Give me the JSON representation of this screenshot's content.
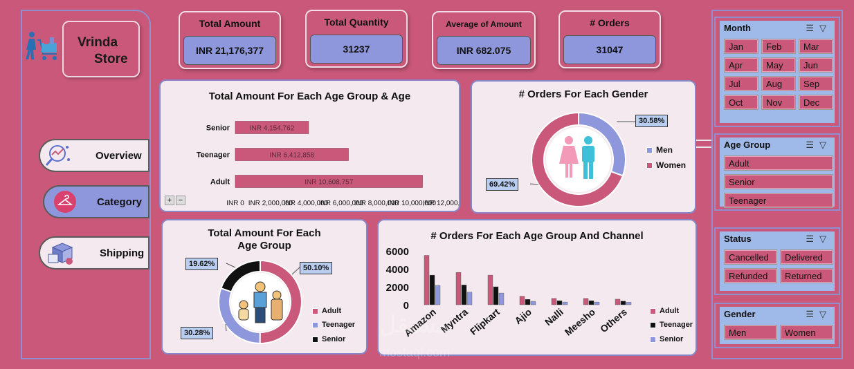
{
  "store": {
    "line1": "Vrinda",
    "line2": "Store"
  },
  "nav": [
    {
      "label": "Overview",
      "icon": "overview-icon"
    },
    {
      "label": "Category",
      "icon": "hanger-icon"
    },
    {
      "label": "Shipping",
      "icon": "shipping-box-icon"
    }
  ],
  "kpis": [
    {
      "title": "Total Amount",
      "value": "INR 21,176,377"
    },
    {
      "title": "Total Quantity",
      "value": "31237"
    },
    {
      "title": "Average of Amount",
      "value": "INR 682.075"
    },
    {
      "title": "# Orders",
      "value": "31047"
    }
  ],
  "zoom_controls": {
    "plus": "+",
    "minus": "−"
  },
  "slicers": {
    "month": {
      "title": "Month",
      "items": [
        "Jan",
        "Feb",
        "Mar",
        "Apr",
        "May",
        "Jun",
        "Jul",
        "Aug",
        "Sep",
        "Oct",
        "Nov",
        "Dec"
      ]
    },
    "age_group": {
      "title": "Age Group",
      "items": [
        "Adult",
        "Senior",
        "Teenager"
      ]
    },
    "status": {
      "title": "Status",
      "items": [
        "Cancelled",
        "Delivered",
        "Refunded",
        "Returned"
      ]
    },
    "gender": {
      "title": "Gender",
      "items": [
        "Men",
        "Women"
      ]
    }
  },
  "watermark": {
    "line1": "مستقل",
    "line2": "mostaql.com"
  },
  "colors": {
    "pink": "#c9587a",
    "lavender": "#8e97dc",
    "black": "#111111",
    "panel": "#f4e9ee"
  },
  "chart_data": [
    {
      "type": "bar",
      "orientation": "horizontal",
      "title": "Total Amount For Each Age Group & Age",
      "categories": [
        "Senior",
        "Teenager",
        "Adult"
      ],
      "values": [
        4154762,
        6412858,
        10608757
      ],
      "data_labels": [
        "INR 4,154,762",
        "INR 6,412,858",
        "INR 10,608,757"
      ],
      "xlim": [
        0,
        12000000
      ],
      "x_tick_labels": [
        "INR 0",
        "INR 2,000,000",
        "INR 4,000,000",
        "INR 6,000,000",
        "INR 8,000,000",
        "INR 10,000,000",
        "INR 12,000,000"
      ],
      "grid": false
    },
    {
      "type": "pie",
      "variant": "donut",
      "title": "# Orders For Each Gender",
      "categories": [
        "Men",
        "Women"
      ],
      "values": [
        30.58,
        69.42
      ],
      "data_labels": [
        "30.58%",
        "69.42%"
      ],
      "legend_placement": "right"
    },
    {
      "type": "pie",
      "variant": "donut",
      "title": "Total Amount For Each Age Group",
      "categories": [
        "Adult",
        "Teenager",
        "Senior"
      ],
      "values": [
        50.1,
        30.28,
        19.62
      ],
      "data_labels": [
        "50.10%",
        "30.28%",
        "19.62%"
      ],
      "legend_placement": "right"
    },
    {
      "type": "bar",
      "title": "# Orders For Each Age Group And Channel",
      "categories": [
        "Amazon",
        "Myntra",
        "Flipkart",
        "Ajio",
        "Nalli",
        "Meesho",
        "Others"
      ],
      "series": [
        {
          "name": "Adult",
          "values": [
            5500,
            3600,
            3300,
            950,
            700,
            700,
            620
          ]
        },
        {
          "name": "Teenager",
          "values": [
            3300,
            2200,
            2000,
            600,
            450,
            450,
            400
          ]
        },
        {
          "name": "Senior",
          "values": [
            2150,
            1400,
            1300,
            380,
            300,
            300,
            280
          ]
        }
      ],
      "ylim": [
        0,
        6000
      ],
      "y_ticks": [
        0,
        2000,
        4000,
        6000
      ],
      "legend_placement": "right",
      "grid": false
    }
  ]
}
